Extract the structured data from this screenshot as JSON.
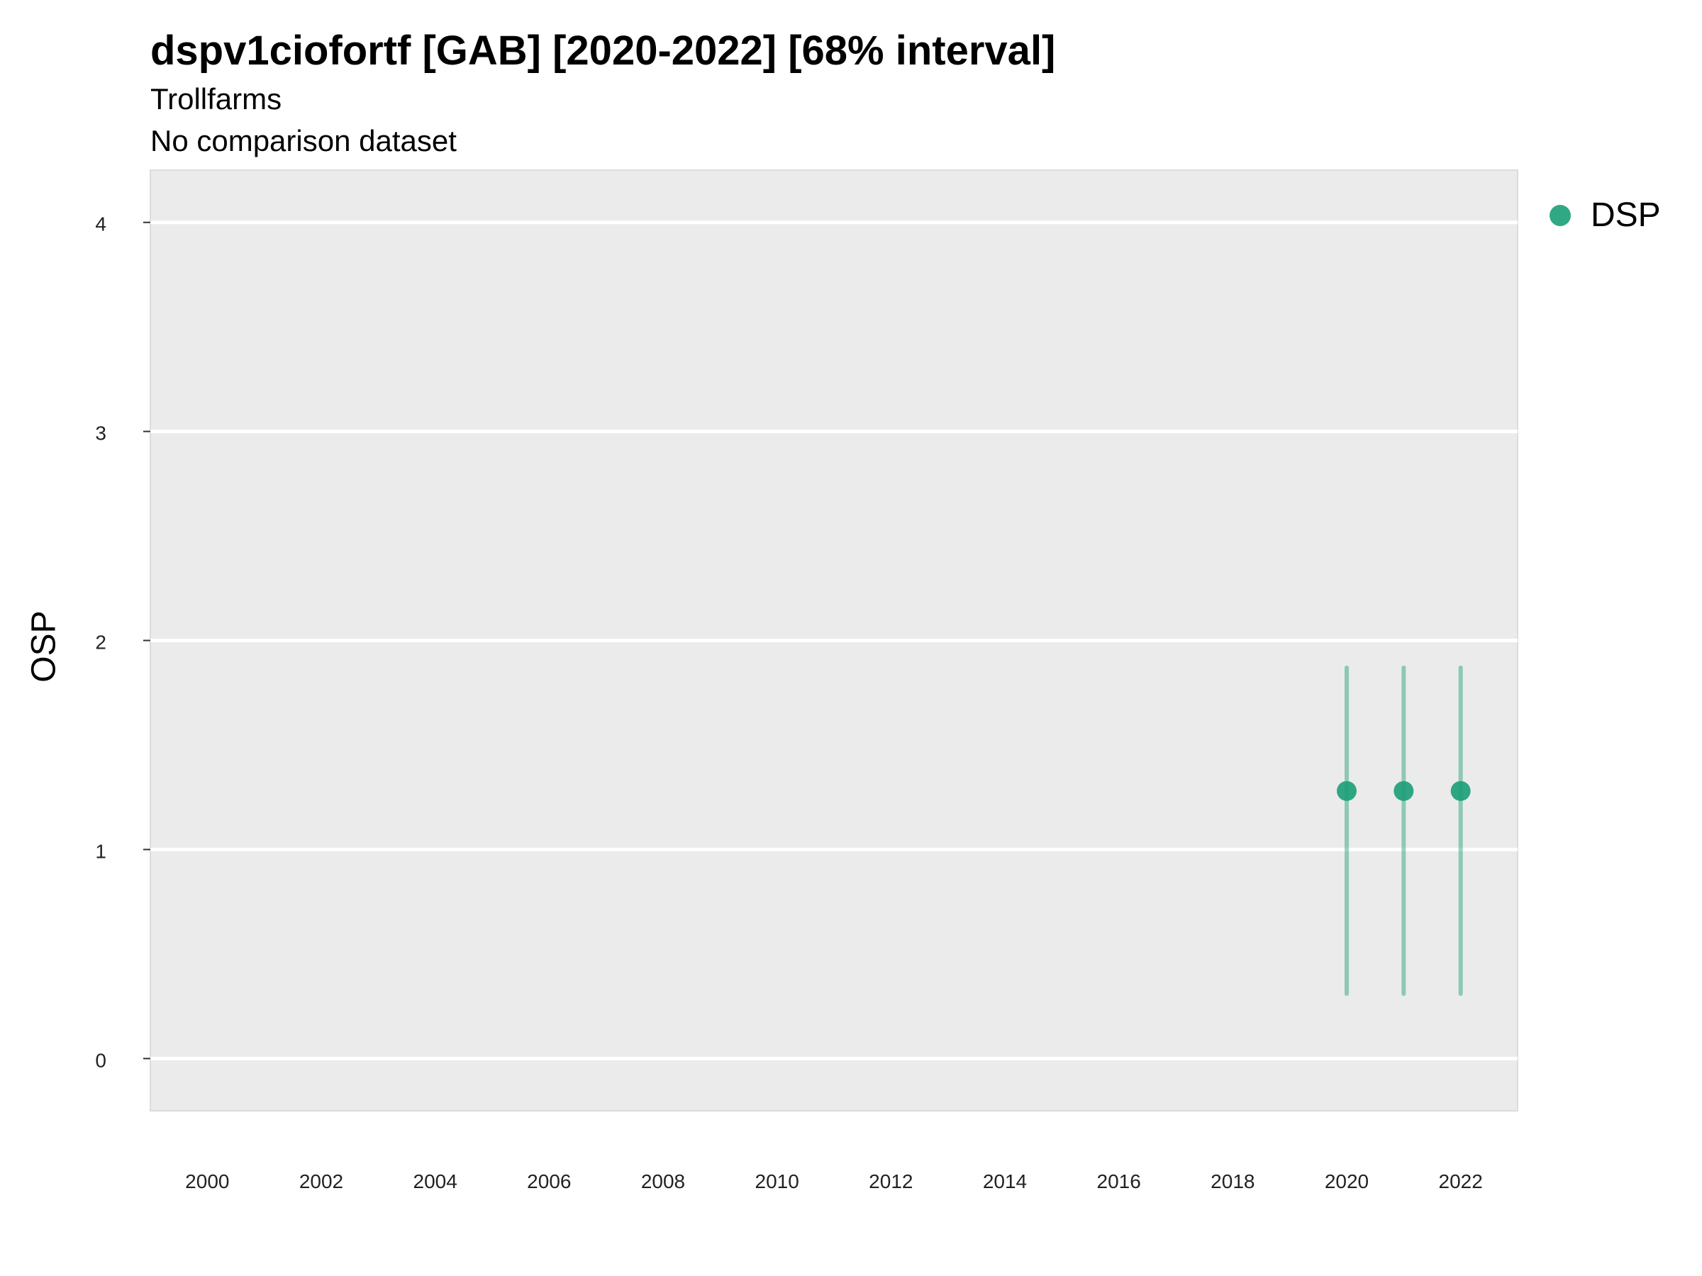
{
  "chart_data": {
    "type": "scatter",
    "title": "dspv1ciofortf [GAB] [2020-2022] [68% interval]",
    "subtitle": [
      "Trollfarms",
      "No comparison dataset"
    ],
    "xlabel": "",
    "ylabel": "OSP",
    "xlim": [
      1999.0,
      2023.0
    ],
    "ylim": [
      -0.25,
      4.25
    ],
    "x_ticks": [
      2000,
      2002,
      2004,
      2006,
      2008,
      2010,
      2012,
      2014,
      2016,
      2018,
      2020,
      2022
    ],
    "y_ticks": [
      0,
      1,
      2,
      3,
      4
    ],
    "grid": true,
    "legend_position": "right",
    "series": [
      {
        "name": "DSP",
        "color": "#1b9e77",
        "points": [
          {
            "x": 2020,
            "y": 1.28,
            "lower": 0.31,
            "upper": 1.87
          },
          {
            "x": 2021,
            "y": 1.28,
            "lower": 0.31,
            "upper": 1.87
          },
          {
            "x": 2022,
            "y": 1.28,
            "lower": 0.31,
            "upper": 1.87
          }
        ]
      }
    ]
  }
}
